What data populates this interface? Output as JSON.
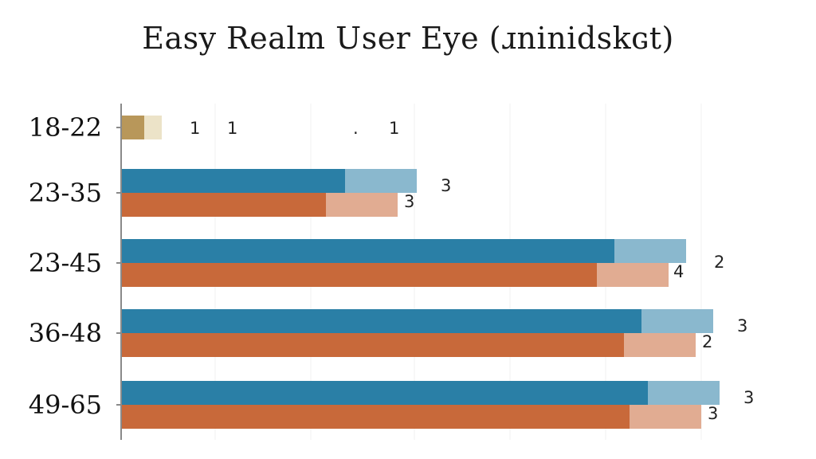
{
  "chart_data": {
    "type": "bar",
    "orientation": "horizontal",
    "title": "Easy Realm User Eye (ɹninidskɢt)",
    "categories": [
      "18-22",
      "23-35",
      "23-45",
      "36-48",
      "49-65"
    ],
    "series": [
      {
        "values": [
          1,
          370,
          708,
          742,
          750
        ]
      },
      {
        "values": [
          1,
          346,
          686,
          720,
          727
        ]
      }
    ],
    "data_labels": [
      {
        "category": "18-22",
        "labels": [
          "1",
          "1",
          ".",
          "1"
        ]
      },
      {
        "category": "23-35",
        "labels": [
          "3",
          "3"
        ]
      },
      {
        "category": "23-45",
        "labels": [
          "4",
          "2"
        ]
      },
      {
        "category": "36-48",
        "labels": [
          "2",
          "3"
        ]
      },
      {
        "category": "49-65",
        "labels": [
          "3",
          "3"
        ]
      }
    ],
    "colors": {
      "series_top": "#2a7fa6",
      "series_bottom": "#c8693a",
      "small_bar": "#b8975a",
      "label_orange": "#b0501d"
    },
    "grid": true,
    "legend": "none"
  }
}
